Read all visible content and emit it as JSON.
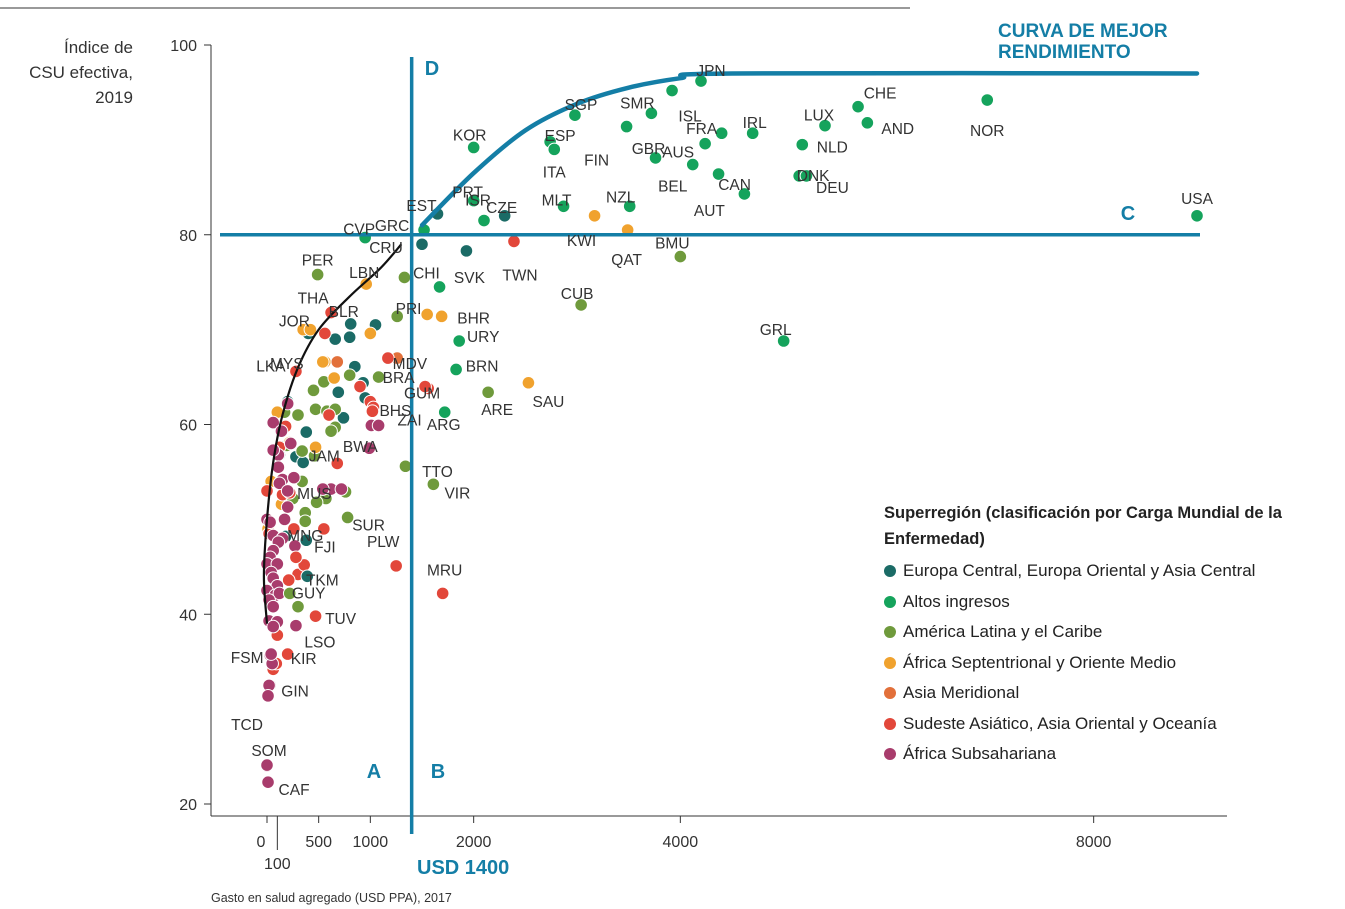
{
  "chart_data": {
    "type": "scatter",
    "ylabel": [
      "Índice de",
      "CSU efectiva,",
      "2019"
    ],
    "xlabel": "Gasto en salud agregado (USD PPA), 2017",
    "xticks": [
      0,
      100,
      500,
      1000,
      2000,
      4000,
      8000
    ],
    "yticks": [
      20,
      40,
      60,
      80,
      100
    ],
    "xlim": [
      -500,
      9300
    ],
    "ylim": [
      18,
      100
    ],
    "threshold_x": 1400,
    "threshold_x_label": "USD 1400",
    "threshold_y": 80,
    "quadrants": [
      "A",
      "B",
      "C",
      "D"
    ],
    "frontier_label": [
      "CURVA DE MEJOR",
      "RENDIMIENTO"
    ],
    "frontier": [
      [
        1500,
        81
      ],
      [
        2000,
        86.5
      ],
      [
        2500,
        91
      ],
      [
        3000,
        93.8
      ],
      [
        3500,
        95.5
      ],
      [
        4000,
        96.5
      ],
      [
        4500,
        97
      ],
      [
        9000,
        97
      ]
    ],
    "trend": [
      [
        0,
        39
      ],
      [
        -30,
        44
      ],
      [
        0,
        50
      ],
      [
        60,
        56
      ],
      [
        150,
        61
      ],
      [
        300,
        66
      ],
      [
        500,
        70
      ],
      [
        800,
        73.5
      ],
      [
        1100,
        76.5
      ],
      [
        1300,
        79
      ]
    ],
    "legend_title": "Superregión (clasificación por Carga Mundial de la Enfermedad)",
    "regions": [
      {
        "name": "Europa Central, Europa Oriental y Asia Central",
        "color": "#1b6b66"
      },
      {
        "name": "Altos ingresos",
        "color": "#15a35c"
      },
      {
        "name": "América Latina y el Caribe",
        "color": "#6f9a3c"
      },
      {
        "name": "África Septentrional y Oriente Medio",
        "color": "#f0a22e"
      },
      {
        "name": "Asia Meridional",
        "color": "#e2703a"
      },
      {
        "name": "Sudeste Asiático, Asia Oriental y Oceanía",
        "color": "#e2473a"
      },
      {
        "name": "África Subsahariana",
        "color": "#a83c6c"
      }
    ],
    "labeled_points": [
      {
        "label": "JPN",
        "x": 4200,
        "y": 96.2,
        "region": 1
      },
      {
        "label": "SGP",
        "x": 2980,
        "y": 92.6,
        "region": 1
      },
      {
        "label": "SMR",
        "x": 3720,
        "y": 92.8,
        "region": 1
      },
      {
        "label": "ISL",
        "x": 3920,
        "y": 95.2,
        "region": 1
      },
      {
        "label": "FRA",
        "x": 4400,
        "y": 90.7,
        "region": 1
      },
      {
        "label": "IRL",
        "x": 4700,
        "y": 90.7,
        "region": 1
      },
      {
        "label": "LUX",
        "x": 5400,
        "y": 91.5,
        "region": 1
      },
      {
        "label": "CHE",
        "x": 5720,
        "y": 93.5,
        "region": 1
      },
      {
        "label": "AND",
        "x": 5810,
        "y": 91.8,
        "region": 1
      },
      {
        "label": "NOR",
        "x": 6970,
        "y": 94.2,
        "region": 1
      },
      {
        "label": "KOR",
        "x": 2000,
        "y": 89.2,
        "region": 1
      },
      {
        "label": "ESP",
        "x": 2740,
        "y": 89.8,
        "region": 1
      },
      {
        "label": "FIN",
        "x": 3480,
        "y": 91.4,
        "region": 1
      },
      {
        "label": "GBR",
        "x": 3760,
        "y": 88.1,
        "region": 1
      },
      {
        "label": "AUS",
        "x": 4240,
        "y": 89.6,
        "region": 1
      },
      {
        "label": "CAN",
        "x": 4370,
        "y": 86.4,
        "region": 1
      },
      {
        "label": "BEL",
        "x": 4120,
        "y": 87.4,
        "region": 1
      },
      {
        "label": "AUT",
        "x": 4620,
        "y": 84.3,
        "region": 1
      },
      {
        "label": "DNK",
        "x": 5150,
        "y": 86.2,
        "region": 1
      },
      {
        "label": "NLD",
        "x": 5180,
        "y": 89.5,
        "region": 1
      },
      {
        "label": "DEU",
        "x": 5220,
        "y": 86.2,
        "region": 1
      },
      {
        "label": "ITA",
        "x": 2780,
        "y": 89.0,
        "region": 1
      },
      {
        "label": "MLT",
        "x": 2870,
        "y": 83.0,
        "region": 1
      },
      {
        "label": "PRT",
        "x": 2000,
        "y": 83.6,
        "region": 1
      },
      {
        "label": "CZE",
        "x": 2300,
        "y": 82.0,
        "region": 0
      },
      {
        "label": "NZL",
        "x": 3510,
        "y": 83.0,
        "region": 1
      },
      {
        "label": "EST",
        "x": 1650,
        "y": 82.2,
        "region": 0
      },
      {
        "label": "GRC",
        "x": 1520,
        "y": 80.5,
        "region": 1
      },
      {
        "label": "CRU",
        "x": 1500,
        "y": 79.0,
        "region": 0
      },
      {
        "label": "CVP",
        "x": 950,
        "y": 79.7,
        "region": 1
      },
      {
        "label": "ISR",
        "x": 2100,
        "y": 81.5,
        "region": 1
      },
      {
        "label": "KWI",
        "x": 3170,
        "y": 82.0,
        "region": 3
      },
      {
        "label": "QAT",
        "x": 3490,
        "y": 80.5,
        "region": 3
      },
      {
        "label": "BMU",
        "x": 4000,
        "y": 77.7,
        "region": 2
      },
      {
        "label": "USA",
        "x": 9000,
        "y": 82.0,
        "region": 1
      },
      {
        "label": "SVK",
        "x": 1930,
        "y": 78.3,
        "region": 0
      },
      {
        "label": "TWN",
        "x": 2390,
        "y": 79.3,
        "region": 5
      },
      {
        "label": "PER",
        "x": 490,
        "y": 75.8,
        "region": 2
      },
      {
        "label": "LBN",
        "x": 960,
        "y": 74.8,
        "region": 3
      },
      {
        "label": "CHI",
        "x": 1330,
        "y": 75.5,
        "region": 2
      },
      {
        "label": "CUB",
        "x": 3040,
        "y": 72.6,
        "region": 2
      },
      {
        "label": "PRI",
        "x": 1670,
        "y": 74.5,
        "region": 1
      },
      {
        "label": "BHR",
        "x": 1690,
        "y": 71.4,
        "region": 3
      },
      {
        "label": "THA",
        "x": 620,
        "y": 71.8,
        "region": 5
      },
      {
        "label": "BLR",
        "x": 810,
        "y": 70.6,
        "region": 0
      },
      {
        "label": "JOR",
        "x": 420,
        "y": 70.0,
        "region": 3
      },
      {
        "label": "URY",
        "x": 1860,
        "y": 68.8,
        "region": 1
      },
      {
        "label": "GRL",
        "x": 5000,
        "y": 68.8,
        "region": 1
      },
      {
        "label": "MYS",
        "x": 540,
        "y": 66.6,
        "region": 3
      },
      {
        "label": "MDV",
        "x": 1170,
        "y": 67.0,
        "region": 5
      },
      {
        "label": "LKA",
        "x": 280,
        "y": 65.6,
        "region": 5
      },
      {
        "label": "BRN",
        "x": 1830,
        "y": 65.8,
        "region": 1
      },
      {
        "label": "BRA",
        "x": 1080,
        "y": 65.0,
        "region": 2
      },
      {
        "label": "GUM",
        "x": 1530,
        "y": 64.0,
        "region": 5
      },
      {
        "label": "ARE",
        "x": 2140,
        "y": 63.4,
        "region": 2
      },
      {
        "label": "SAU",
        "x": 2530,
        "y": 64.4,
        "region": 3
      },
      {
        "label": "BHS",
        "x": 1020,
        "y": 61.4,
        "region": 5
      },
      {
        "label": "ARG",
        "x": 1720,
        "y": 61.3,
        "region": 1
      },
      {
        "label": "ZAI",
        "x": 1080,
        "y": 59.9,
        "region": 6
      },
      {
        "label": "JAM",
        "x": 680,
        "y": 55.9,
        "region": 5
      },
      {
        "label": "BWA",
        "x": 990,
        "y": 57.5,
        "region": 6
      },
      {
        "label": "TTO",
        "x": 1340,
        "y": 55.6,
        "region": 2
      },
      {
        "label": "MUS",
        "x": 720,
        "y": 53.2,
        "region": 6
      },
      {
        "label": "VIR",
        "x": 1610,
        "y": 53.7,
        "region": 2
      },
      {
        "label": "SUR",
        "x": 780,
        "y": 50.2,
        "region": 2
      },
      {
        "label": "MNG",
        "x": 380,
        "y": 47.8,
        "region": 0
      },
      {
        "label": "FJI",
        "x": 280,
        "y": 46.0,
        "region": 5
      },
      {
        "label": "TKM",
        "x": 390,
        "y": 44.0,
        "region": 0
      },
      {
        "label": "PLW",
        "x": 1250,
        "y": 45.1,
        "region": 5
      },
      {
        "label": "MRU",
        "x": 1700,
        "y": 42.2,
        "region": 5
      },
      {
        "label": "GUY",
        "x": 220,
        "y": 42.2,
        "region": 2
      },
      {
        "label": "TUV",
        "x": 470,
        "y": 39.8,
        "region": 5
      },
      {
        "label": "LSO",
        "x": 280,
        "y": 38.8,
        "region": 6
      },
      {
        "label": "KIR",
        "x": 200,
        "y": 35.8,
        "region": 5
      },
      {
        "label": "FSM",
        "x": 40,
        "y": 35.8,
        "region": 6
      },
      {
        "label": "GIN",
        "x": 20,
        "y": 32.5,
        "region": 6
      },
      {
        "label": "TCD",
        "x": 10,
        "y": 31.4,
        "region": 6
      },
      {
        "label": "SOM",
        "x": 0,
        "y": 24.1,
        "region": 6
      },
      {
        "label": "CAF",
        "x": 10,
        "y": 22.3,
        "region": 6
      }
    ],
    "other_points": [
      [
        400,
        69.6,
        0
      ],
      [
        660,
        69.0,
        0
      ],
      [
        800,
        69.2,
        0
      ],
      [
        1050,
        70.5,
        0
      ],
      [
        690,
        63.4,
        0
      ],
      [
        850,
        66.1,
        0
      ],
      [
        930,
        64.4,
        0
      ],
      [
        950,
        62.8,
        0
      ],
      [
        740,
        60.7,
        0
      ],
      [
        380,
        59.2,
        0
      ],
      [
        200,
        62.4,
        0
      ],
      [
        280,
        56.6,
        0
      ],
      [
        350,
        56.0,
        0
      ],
      [
        180,
        48.2,
        0
      ],
      [
        120,
        56.8,
        0
      ],
      [
        170,
        61.3,
        2
      ],
      [
        470,
        61.6,
        2
      ],
      [
        580,
        61.4,
        2
      ],
      [
        660,
        61.6,
        2
      ],
      [
        660,
        59.7,
        2
      ],
      [
        620,
        59.3,
        2
      ],
      [
        300,
        61.0,
        2
      ],
      [
        450,
        63.6,
        2
      ],
      [
        550,
        64.5,
        2
      ],
      [
        800,
        65.2,
        2
      ],
      [
        340,
        54.0,
        2
      ],
      [
        190,
        57.8,
        2
      ],
      [
        340,
        57.2,
        2
      ],
      [
        460,
        56.7,
        2
      ],
      [
        250,
        52.2,
        2
      ],
      [
        370,
        50.7,
        2
      ],
      [
        370,
        49.8,
        2
      ],
      [
        570,
        52.2,
        2
      ],
      [
        480,
        51.8,
        2
      ],
      [
        760,
        52.9,
        2
      ],
      [
        300,
        40.8,
        2
      ],
      [
        1260,
        71.4,
        2
      ],
      [
        100,
        61.3,
        3
      ],
      [
        350,
        70.0,
        3
      ],
      [
        220,
        58.1,
        3
      ],
      [
        470,
        57.6,
        3
      ],
      [
        560,
        66.6,
        3
      ],
      [
        650,
        64.9,
        3
      ],
      [
        1000,
        69.6,
        3
      ],
      [
        1550,
        71.6,
        3
      ],
      [
        40,
        54.0,
        3
      ],
      [
        10,
        49.0,
        3
      ],
      [
        140,
        51.6,
        3
      ],
      [
        1260,
        67.0,
        4
      ],
      [
        680,
        66.6,
        4
      ],
      [
        620,
        71.8,
        5
      ],
      [
        560,
        69.6,
        5
      ],
      [
        120,
        57.6,
        5
      ],
      [
        180,
        59.8,
        5
      ],
      [
        600,
        61.0,
        5
      ],
      [
        1000,
        62.4,
        5
      ],
      [
        1030,
        61.8,
        5
      ],
      [
        900,
        64.0,
        5
      ],
      [
        1560,
        63.8,
        5
      ],
      [
        150,
        52.6,
        5
      ],
      [
        220,
        52.8,
        5
      ],
      [
        0,
        53.0,
        5
      ],
      [
        20,
        48.5,
        5
      ],
      [
        300,
        44.2,
        5
      ],
      [
        210,
        43.6,
        5
      ],
      [
        260,
        49.0,
        5
      ],
      [
        550,
        49.0,
        5
      ],
      [
        100,
        48.0,
        5
      ],
      [
        100,
        37.8,
        5
      ],
      [
        60,
        34.2,
        5
      ],
      [
        90,
        34.8,
        5
      ],
      [
        360,
        45.2,
        5
      ],
      [
        200,
        62.2,
        6
      ],
      [
        1010,
        59.9,
        6
      ],
      [
        980,
        57.5,
        6
      ],
      [
        620,
        53.2,
        6
      ],
      [
        540,
        53.2,
        6
      ],
      [
        110,
        56.8,
        6
      ],
      [
        110,
        55.5,
        6
      ],
      [
        150,
        54.2,
        6
      ],
      [
        200,
        51.3,
        6
      ],
      [
        170,
        50.0,
        6
      ],
      [
        0,
        50.0,
        6
      ],
      [
        30,
        49.7,
        6
      ],
      [
        60,
        48.3,
        6
      ],
      [
        150,
        48.0,
        6
      ],
      [
        110,
        47.6,
        6
      ],
      [
        60,
        46.7,
        6
      ],
      [
        30,
        46.0,
        6
      ],
      [
        0,
        45.3,
        6
      ],
      [
        100,
        45.3,
        6
      ],
      [
        40,
        44.4,
        6
      ],
      [
        60,
        43.8,
        6
      ],
      [
        100,
        43.0,
        6
      ],
      [
        0,
        42.5,
        6
      ],
      [
        80,
        42.0,
        6
      ],
      [
        120,
        42.2,
        6
      ],
      [
        20,
        41.5,
        6
      ],
      [
        60,
        40.8,
        6
      ],
      [
        20,
        39.3,
        6
      ],
      [
        100,
        39.2,
        6
      ],
      [
        60,
        38.7,
        6
      ],
      [
        30,
        35.7,
        6
      ],
      [
        50,
        34.8,
        6
      ],
      [
        30,
        32.5,
        6
      ],
      [
        10,
        31.5,
        6
      ],
      [
        0,
        24.0,
        6
      ],
      [
        10,
        22.3,
        6
      ],
      [
        230,
        58.0,
        6
      ],
      [
        260,
        54.4,
        6
      ],
      [
        270,
        47.2,
        6
      ],
      [
        60,
        60.2,
        6
      ],
      [
        140,
        59.3,
        6
      ],
      [
        60,
        57.3,
        6
      ],
      [
        120,
        53.8,
        6
      ],
      [
        200,
        53.0,
        6
      ]
    ]
  }
}
